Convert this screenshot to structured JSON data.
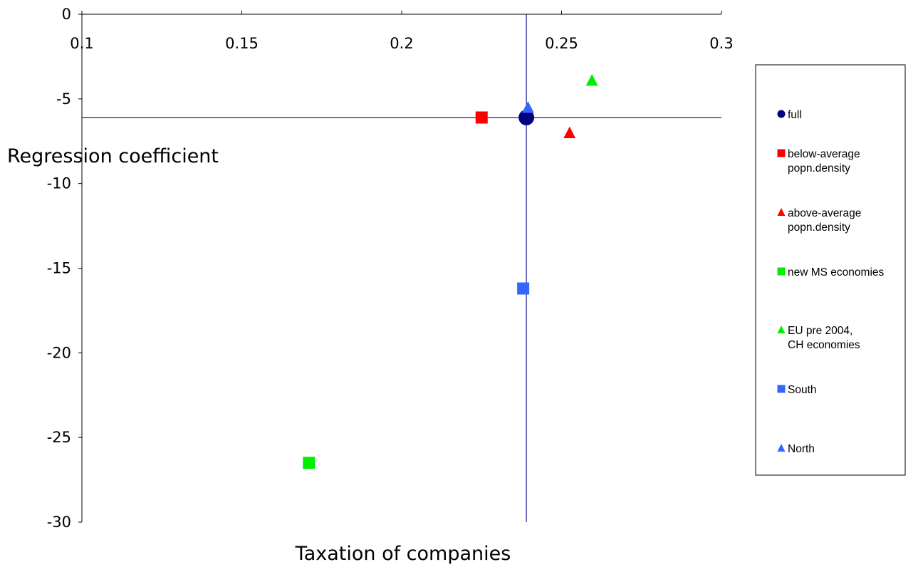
{
  "chart_data": {
    "type": "scatter",
    "title": "",
    "xlabel": "Taxation of companies",
    "ylabel": "Regression coefficient",
    "xlim": [
      0.1,
      0.3
    ],
    "ylim": [
      -30,
      0
    ],
    "x_ticks": [
      "0.1",
      "0.15",
      "0.2",
      "0.25",
      "0.3"
    ],
    "y_ticks": [
      "0",
      "-5",
      "-10",
      "-15",
      "-20",
      "-25",
      "-30"
    ],
    "x_axis_position": "top",
    "grid": false,
    "reference_lines": {
      "x": 0.239,
      "y": -6.1,
      "color": "#1a1a8c"
    },
    "legend": {
      "position": "right"
    },
    "series": [
      {
        "name": "full",
        "label_lines": [
          "full"
        ],
        "marker": "circle",
        "color": "#000080",
        "points": [
          [
            0.239,
            -6.1
          ]
        ]
      },
      {
        "name": "below-average popn.density",
        "label_lines": [
          "below-average",
          "popn.density"
        ],
        "marker": "square",
        "color": "#ff0000",
        "points": [
          [
            0.225,
            -6.1
          ]
        ]
      },
      {
        "name": "above-average popn.density",
        "label_lines": [
          "above-average",
          "popn.density"
        ],
        "marker": "triangle",
        "color": "#ff0000",
        "points": [
          [
            0.2525,
            -7.0
          ]
        ]
      },
      {
        "name": "new MS economies",
        "label_lines": [
          "new MS economies"
        ],
        "marker": "square",
        "color": "#00ee00",
        "points": [
          [
            0.171,
            -26.5
          ]
        ]
      },
      {
        "name": "EU pre 2004, CH economies",
        "label_lines": [
          "EU pre 2004,",
          "CH economies"
        ],
        "marker": "triangle",
        "color": "#00ee00",
        "points": [
          [
            0.2595,
            -3.9
          ]
        ]
      },
      {
        "name": "South",
        "label_lines": [
          "South"
        ],
        "marker": "square",
        "color": "#3366ff",
        "points": [
          [
            0.238,
            -16.2
          ]
        ]
      },
      {
        "name": "North",
        "label_lines": [
          "North"
        ],
        "marker": "triangle",
        "color": "#3366ff",
        "points": [
          [
            0.2395,
            -5.5
          ]
        ]
      }
    ]
  }
}
